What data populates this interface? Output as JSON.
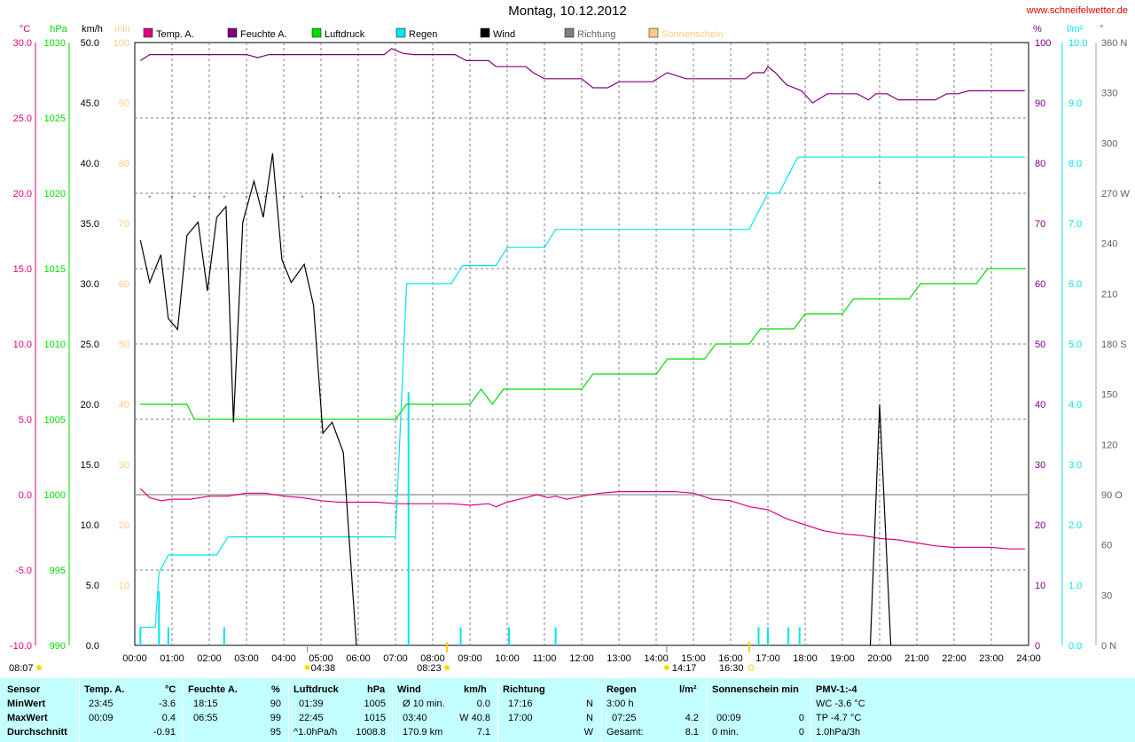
{
  "header": {
    "title": "Montag, 10.12.2012",
    "website": "www.schneifelwetter.de"
  },
  "axis_units": {
    "temp": "°C",
    "pressure": "hPa",
    "wind": "km/h",
    "sun": "min",
    "humidity": "%",
    "rain": "l/m²",
    "direction": "°"
  },
  "legend": [
    {
      "label": "Temp. A.",
      "color": "#e0007a"
    },
    {
      "label": "Feuchte A.",
      "color": "#800080"
    },
    {
      "label": "Luftdruck",
      "color": "#00dd00"
    },
    {
      "label": "Regen",
      "color": "#00e5ee"
    },
    {
      "label": "Wind",
      "color": "#000000"
    },
    {
      "label": "Richtung",
      "color": "#808080"
    },
    {
      "label": "Sonnenschein",
      "color": "#ffcc80"
    }
  ],
  "colors": {
    "temp": "#e0007a",
    "humidity": "#800080",
    "pressure": "#00dd00",
    "rain": "#00e5ee",
    "wind": "#000000",
    "direction": "#808080",
    "sun": "#ffcc80",
    "stats_bg": "#c4ffff"
  },
  "astro": {
    "sunrise": "08:07",
    "sunset": "16:30",
    "moonrise": "04:38",
    "moonset": "14:17",
    "solar_noon": "08:23"
  },
  "stats": {
    "headers": {
      "sensor": "Sensor",
      "temp": "Temp. A.",
      "temp_unit": "°C",
      "hum": "Feuchte A.",
      "hum_unit": "%",
      "press": "Luftdruck",
      "press_unit": "hPa",
      "wind": "Wind",
      "wind_unit": "km/h",
      "dir": "Richtung",
      "rain": "Regen",
      "rain_unit": "l/m²",
      "sun": "Sonnenschein min",
      "pmv": "PMV-1:-4"
    },
    "rows": [
      {
        "label": "MinWert",
        "temp_time": "23:45",
        "temp_val": "-3.6",
        "hum_time": "18:15",
        "hum_val": "90",
        "press_time": "01:39",
        "press_val": "1005",
        "wind_time": "Ø 10 min.",
        "wind_val": "0.0",
        "dir_time": "17:16",
        "dir_val": "N",
        "rain_time": "3:00 h",
        "rain_val": "",
        "sun_time": "",
        "sun_val": "",
        "pmv": "WC -3.6 °C"
      },
      {
        "label": "MaxWert",
        "temp_time": "00:09",
        "temp_val": "0.4",
        "hum_time": "06:55",
        "hum_val": "99",
        "press_time": "22:45",
        "press_val": "1015",
        "wind_time": "03:40",
        "wind_val": "W 40.8",
        "dir_time": "17:00",
        "dir_val": "N",
        "rain_time": "07:25",
        "rain_val": "4.2",
        "sun_time": "00:09",
        "sun_val": "0",
        "pmv": "TP -4.7 °C"
      },
      {
        "label": "Durchschnitt",
        "temp_time": "",
        "temp_val": "-0.91",
        "hum_time": "",
        "hum_val": "95",
        "press_time": "^1.0hPa/h",
        "press_val": "1008.8",
        "wind_time": "170.9 km",
        "wind_val": "7.1",
        "dir_time": "",
        "dir_val": "W",
        "rain_time": "Gesamt:",
        "rain_val": "8.1",
        "sun_time": "0 min.",
        "sun_val": "0",
        "pmv": "1.0hPa/3h"
      }
    ]
  },
  "chart_data": {
    "type": "line",
    "title": "Montag, 10.12.2012",
    "x_ticks": [
      "00:00",
      "01:00",
      "02:00",
      "03:00",
      "04:00",
      "05:00",
      "06:00",
      "07:00",
      "08:00",
      "09:00",
      "10:00",
      "11:00",
      "12:00",
      "13:00",
      "14:00",
      "15:00",
      "16:00",
      "17:00",
      "18:00",
      "19:00",
      "20:00",
      "21:00",
      "22:00",
      "23:00",
      "24:00"
    ],
    "xlim": [
      0,
      24
    ],
    "grid": true,
    "axes": {
      "temp": {
        "unit": "°C",
        "range": [
          -10,
          30
        ],
        "ticks": [
          "-10.0",
          "-5.0",
          "0.0",
          "5.0",
          "10.0",
          "15.0",
          "20.0",
          "25.0",
          "30.0"
        ]
      },
      "pressure": {
        "unit": "hPa",
        "range": [
          990,
          1030
        ],
        "ticks": [
          "990",
          "995",
          "1000",
          "1005",
          "1010",
          "1015",
          "1020",
          "1025",
          "1030"
        ]
      },
      "wind": {
        "unit": "km/h",
        "range": [
          0,
          50
        ],
        "ticks": [
          "0.0",
          "5.0",
          "10.0",
          "15.0",
          "20.0",
          "25.0",
          "30.0",
          "35.0",
          "40.0",
          "45.0",
          "50.0"
        ]
      },
      "sun": {
        "unit": "min",
        "range": [
          0,
          100
        ],
        "ticks": [
          "10",
          "20",
          "30",
          "40",
          "50",
          "60",
          "70",
          "80",
          "90",
          "100"
        ]
      },
      "humidity": {
        "unit": "%",
        "range": [
          0,
          100
        ],
        "ticks": [
          "0",
          "10",
          "20",
          "30",
          "40",
          "50",
          "60",
          "70",
          "80",
          "90",
          "100"
        ]
      },
      "rain": {
        "unit": "l/m²",
        "range": [
          0,
          10
        ],
        "ticks": [
          "0.0",
          "1.0",
          "2.0",
          "3.0",
          "4.0",
          "5.0",
          "6.0",
          "7.0",
          "8.0",
          "9.0",
          "10.0"
        ]
      },
      "direction": {
        "unit": "°",
        "range": [
          0,
          360
        ],
        "ticks": [
          "0 N",
          "30",
          "60",
          "90 O",
          "120",
          "150",
          "180 S",
          "210",
          "240",
          "270 W",
          "300",
          "330",
          "360 N"
        ]
      }
    },
    "series": [
      {
        "name": "Temp. A.",
        "axis": "temp",
        "color": "#e0007a",
        "points": [
          [
            0.15,
            0.4
          ],
          [
            0.4,
            -0.2
          ],
          [
            0.7,
            -0.4
          ],
          [
            1,
            -0.3
          ],
          [
            1.5,
            -0.3
          ],
          [
            2,
            -0.1
          ],
          [
            2.5,
            -0.1
          ],
          [
            3,
            0.1
          ],
          [
            3.5,
            0.1
          ],
          [
            4,
            -0.1
          ],
          [
            4.5,
            -0.2
          ],
          [
            5,
            -0.4
          ],
          [
            5.5,
            -0.5
          ],
          [
            6,
            -0.5
          ],
          [
            6.5,
            -0.5
          ],
          [
            7,
            -0.6
          ],
          [
            7.5,
            -0.6
          ],
          [
            8,
            -0.6
          ],
          [
            8.5,
            -0.6
          ],
          [
            9,
            -0.7
          ],
          [
            9.5,
            -0.6
          ],
          [
            9.7,
            -0.8
          ],
          [
            10,
            -0.5
          ],
          [
            10.5,
            -0.2
          ],
          [
            10.8,
            0
          ],
          [
            11.1,
            -0.2
          ],
          [
            11.3,
            -0.1
          ],
          [
            11.6,
            -0.3
          ],
          [
            12,
            -0.1
          ],
          [
            12.5,
            0.1
          ],
          [
            13,
            0.2
          ],
          [
            13.5,
            0.2
          ],
          [
            14,
            0.2
          ],
          [
            14.5,
            0.2
          ],
          [
            15,
            0.1
          ],
          [
            15.5,
            -0.3
          ],
          [
            16,
            -0.4
          ],
          [
            16.5,
            -0.8
          ],
          [
            17,
            -1.0
          ],
          [
            17.5,
            -1.6
          ],
          [
            18,
            -2.0
          ],
          [
            18.5,
            -2.4
          ],
          [
            19,
            -2.6
          ],
          [
            19.5,
            -2.7
          ],
          [
            20,
            -2.9
          ],
          [
            20.5,
            -3.0
          ],
          [
            21,
            -3.2
          ],
          [
            21.5,
            -3.4
          ],
          [
            22,
            -3.5
          ],
          [
            22.5,
            -3.5
          ],
          [
            23,
            -3.5
          ],
          [
            23.5,
            -3.6
          ],
          [
            23.9,
            -3.6
          ]
        ]
      },
      {
        "name": "Feuchte A.",
        "axis": "humidity",
        "color": "#800080",
        "points": [
          [
            0.15,
            97
          ],
          [
            0.4,
            98
          ],
          [
            1,
            98
          ],
          [
            2,
            98
          ],
          [
            3,
            98
          ],
          [
            3.3,
            97.5
          ],
          [
            3.6,
            98
          ],
          [
            4,
            98
          ],
          [
            5,
            98
          ],
          [
            6,
            98
          ],
          [
            6.7,
            98
          ],
          [
            6.9,
            99
          ],
          [
            7.2,
            98.2
          ],
          [
            7.5,
            98
          ],
          [
            8,
            98
          ],
          [
            8.6,
            98
          ],
          [
            8.9,
            97
          ],
          [
            9.5,
            97
          ],
          [
            9.7,
            96
          ],
          [
            10,
            96
          ],
          [
            10.5,
            96
          ],
          [
            10.7,
            95
          ],
          [
            11,
            94
          ],
          [
            12,
            94
          ],
          [
            12.3,
            92.5
          ],
          [
            12.7,
            92.5
          ],
          [
            13,
            93.5
          ],
          [
            13.5,
            93.5
          ],
          [
            13.9,
            93.5
          ],
          [
            14.3,
            95
          ],
          [
            14.8,
            94
          ],
          [
            15.5,
            94
          ],
          [
            16,
            94
          ],
          [
            16.4,
            94
          ],
          [
            16.6,
            95
          ],
          [
            16.9,
            95
          ],
          [
            17,
            96
          ],
          [
            17.2,
            95
          ],
          [
            17.5,
            93
          ],
          [
            17.9,
            92
          ],
          [
            18.2,
            90
          ],
          [
            18.6,
            91.5
          ],
          [
            19,
            91.5
          ],
          [
            19.4,
            91.5
          ],
          [
            19.7,
            90.5
          ],
          [
            19.9,
            91.5
          ],
          [
            20.2,
            91.5
          ],
          [
            20.5,
            90.5
          ],
          [
            21,
            90.5
          ],
          [
            21.5,
            90.5
          ],
          [
            21.8,
            91.5
          ],
          [
            22.1,
            91.5
          ],
          [
            22.4,
            92
          ],
          [
            22.7,
            92
          ],
          [
            23,
            92
          ],
          [
            23.5,
            92
          ],
          [
            23.9,
            92
          ]
        ]
      },
      {
        "name": "Luftdruck",
        "axis": "pressure",
        "color": "#00dd00",
        "points": [
          [
            0.15,
            1006
          ],
          [
            1.4,
            1006
          ],
          [
            1.6,
            1005
          ],
          [
            2.5,
            1005
          ],
          [
            5,
            1005
          ],
          [
            7,
            1005
          ],
          [
            7.3,
            1006
          ],
          [
            8,
            1006
          ],
          [
            9,
            1006
          ],
          [
            9.3,
            1007
          ],
          [
            9.6,
            1006
          ],
          [
            9.9,
            1007
          ],
          [
            10.5,
            1007
          ],
          [
            11.5,
            1007
          ],
          [
            12,
            1007
          ],
          [
            12.3,
            1008
          ],
          [
            14,
            1008
          ],
          [
            14.3,
            1009
          ],
          [
            15.3,
            1009
          ],
          [
            15.6,
            1010
          ],
          [
            16.5,
            1010
          ],
          [
            16.8,
            1011
          ],
          [
            17.7,
            1011
          ],
          [
            18,
            1012
          ],
          [
            19,
            1012
          ],
          [
            19.3,
            1013
          ],
          [
            20.8,
            1013
          ],
          [
            21.1,
            1014
          ],
          [
            22.6,
            1014
          ],
          [
            22.9,
            1015
          ],
          [
            23.9,
            1015
          ]
        ]
      },
      {
        "name": "Regen",
        "axis": "rain",
        "color": "#00e5ee",
        "points": [
          [
            0.15,
            0.3
          ],
          [
            0.55,
            0.3
          ],
          [
            0.65,
            1.2
          ],
          [
            0.9,
            1.5
          ],
          [
            1.5,
            1.5
          ],
          [
            2.2,
            1.5
          ],
          [
            2.5,
            1.8
          ],
          [
            5,
            1.8
          ],
          [
            7,
            1.8
          ],
          [
            7.3,
            6.0
          ],
          [
            8.5,
            6.0
          ],
          [
            8.8,
            6.3
          ],
          [
            9.7,
            6.3
          ],
          [
            10,
            6.6
          ],
          [
            11,
            6.6
          ],
          [
            11.3,
            6.9
          ],
          [
            12,
            6.9
          ],
          [
            14.5,
            6.9
          ],
          [
            16.5,
            6.9
          ],
          [
            17,
            7.5
          ],
          [
            17.3,
            7.5
          ],
          [
            17.8,
            8.1
          ],
          [
            18.2,
            8.1
          ],
          [
            23.9,
            8.1
          ]
        ]
      },
      {
        "name": "Wind",
        "axis": "wind",
        "color": "#000000",
        "points": [
          [
            0.15,
            33.6
          ],
          [
            0.4,
            30.1
          ],
          [
            0.7,
            32.4
          ],
          [
            0.9,
            27.1
          ],
          [
            1.15,
            26.2
          ],
          [
            1.4,
            34.0
          ],
          [
            1.7,
            35.1
          ],
          [
            1.95,
            29.4
          ],
          [
            2.2,
            35.5
          ],
          [
            2.45,
            36.4
          ],
          [
            2.65,
            18.5
          ],
          [
            2.9,
            35.1
          ],
          [
            3.2,
            38.5
          ],
          [
            3.45,
            35.5
          ],
          [
            3.7,
            40.8
          ],
          [
            3.95,
            32.0
          ],
          [
            4.2,
            30.1
          ],
          [
            4.55,
            31.6
          ],
          [
            4.8,
            28.2
          ],
          [
            5.05,
            17.6
          ],
          [
            5.3,
            18.5
          ],
          [
            5.6,
            16.0
          ],
          [
            5.95,
            0
          ]
        ]
      },
      {
        "name": "Wind",
        "axis": "wind",
        "color": "#000000",
        "points": [
          [
            19.75,
            0
          ],
          [
            20.0,
            20.0
          ],
          [
            20.3,
            0
          ]
        ]
      }
    ],
    "rain_bars_lm2": [
      [
        0.15,
        0.3
      ],
      [
        0.65,
        0.9
      ],
      [
        0.9,
        0.3
      ],
      [
        2.4,
        0.3
      ],
      [
        7.35,
        4.2
      ],
      [
        8.75,
        0.3
      ],
      [
        10.05,
        0.3
      ],
      [
        11.3,
        0.3
      ],
      [
        16.75,
        0.3
      ],
      [
        17.0,
        0.3
      ],
      [
        17.55,
        0.3
      ],
      [
        17.85,
        0.3
      ]
    ],
    "direction_deg": [
      [
        0.4,
        268
      ],
      [
        1,
        268
      ],
      [
        1.6,
        268
      ],
      [
        2,
        268
      ],
      [
        2.4,
        268
      ],
      [
        3,
        268
      ],
      [
        3.5,
        268
      ],
      [
        4,
        268
      ],
      [
        4.5,
        268
      ],
      [
        5,
        268
      ],
      [
        5.5,
        268
      ],
      [
        20,
        276
      ]
    ],
    "reference_line_temp": 0,
    "sun_markers": [
      "08:23",
      "16:30"
    ],
    "moon_markers": [
      "04:38",
      "14:17"
    ]
  }
}
